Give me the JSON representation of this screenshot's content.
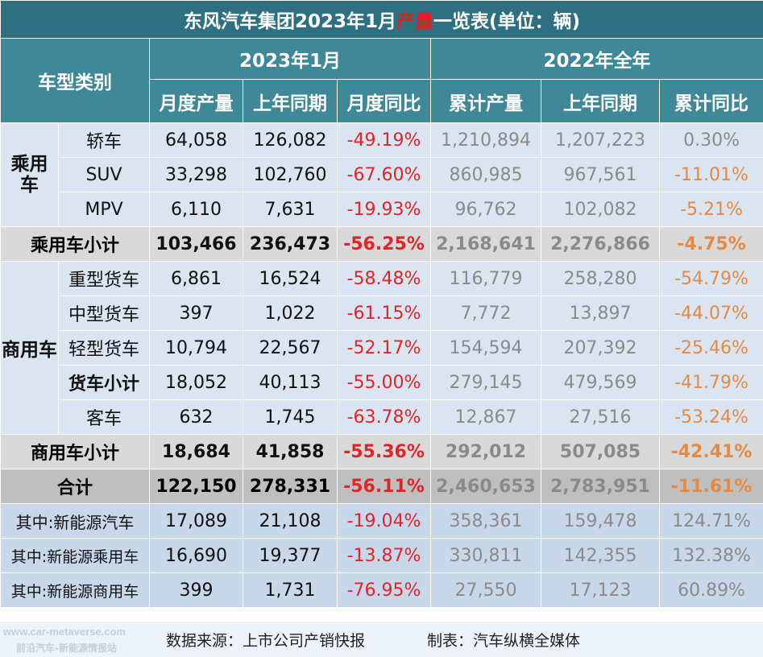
{
  "title": {
    "prefix": "东风汽车集团2023年1月",
    "highlight": "产量",
    "suffix": "一览表(单位：辆)"
  },
  "header": {
    "category": "车型类别",
    "group_month": "2023年1月",
    "group_year": "2022年全年",
    "cols": [
      "月度产量",
      "上年同期",
      "月度同比",
      "累计产量",
      "上年同期",
      "累计同比"
    ]
  },
  "groups": {
    "passenger": "乘用\n车",
    "commercial": "商用车"
  },
  "rows": {
    "sedan": {
      "label": "轿车",
      "v": [
        "64,058",
        "126,082",
        "-49.19%",
        "1,210,894",
        "1,207,223",
        "0.30%"
      ]
    },
    "suv": {
      "label": "SUV",
      "v": [
        "33,298",
        "102,760",
        "-67.60%",
        "860,985",
        "967,561",
        "-11.01%"
      ]
    },
    "mpv": {
      "label": "MPV",
      "v": [
        "6,110",
        "7,631",
        "-19.93%",
        "96,762",
        "102,082",
        "-5.21%"
      ]
    },
    "pv_sub": {
      "label": "乘用车小计",
      "v": [
        "103,466",
        "236,473",
        "-56.25%",
        "2,168,641",
        "2,276,866",
        "-4.75%"
      ]
    },
    "heavy": {
      "label": "重型货车",
      "v": [
        "6,861",
        "16,524",
        "-58.48%",
        "116,779",
        "258,280",
        "-54.79%"
      ]
    },
    "medium": {
      "label": "中型货车",
      "v": [
        "397",
        "1,022",
        "-61.15%",
        "7,772",
        "13,897",
        "-44.07%"
      ]
    },
    "light": {
      "label": "轻型货车",
      "v": [
        "10,794",
        "22,567",
        "-52.17%",
        "154,594",
        "207,392",
        "-25.46%"
      ]
    },
    "truck_sub": {
      "label": "货车小计",
      "v": [
        "18,052",
        "40,113",
        "-55.00%",
        "279,145",
        "479,569",
        "-41.79%"
      ]
    },
    "bus": {
      "label": "客车",
      "v": [
        "632",
        "1,745",
        "-63.78%",
        "12,867",
        "27,516",
        "-53.24%"
      ]
    },
    "cv_sub": {
      "label": "商用车小计",
      "v": [
        "18,684",
        "41,858",
        "-55.36%",
        "292,012",
        "507,085",
        "-42.41%"
      ]
    },
    "total": {
      "label": "合计",
      "v": [
        "122,150",
        "278,331",
        "-56.11%",
        "2,460,653",
        "2,783,951",
        "-11.61%"
      ]
    },
    "nev": {
      "label": "其中:新能源汽车",
      "v": [
        "17,089",
        "21,108",
        "-19.04%",
        "358,361",
        "159,478",
        "124.71%"
      ]
    },
    "nev_pv": {
      "label": "其中:新能源乘用车",
      "v": [
        "16,690",
        "19,377",
        "-13.87%",
        "330,811",
        "142,355",
        "132.38%"
      ]
    },
    "nev_cv": {
      "label": "其中:新能源商用车",
      "v": [
        "399",
        "1,731",
        "-76.95%",
        "27,550",
        "17,123",
        "60.89%"
      ]
    }
  },
  "footer": {
    "watermark_url": "www.car-metaverse.com",
    "watermark_name": "前沿汽车-新能源情报站",
    "source": "数据来源：上市公司产销快报",
    "maker": "制表：汽车纵横全媒体"
  },
  "colors": {
    "header": "#3f8897",
    "title": "#2e6f80",
    "negative": "#e0242a",
    "year_negative": "#e58a44",
    "body": "#dbe5f1"
  }
}
